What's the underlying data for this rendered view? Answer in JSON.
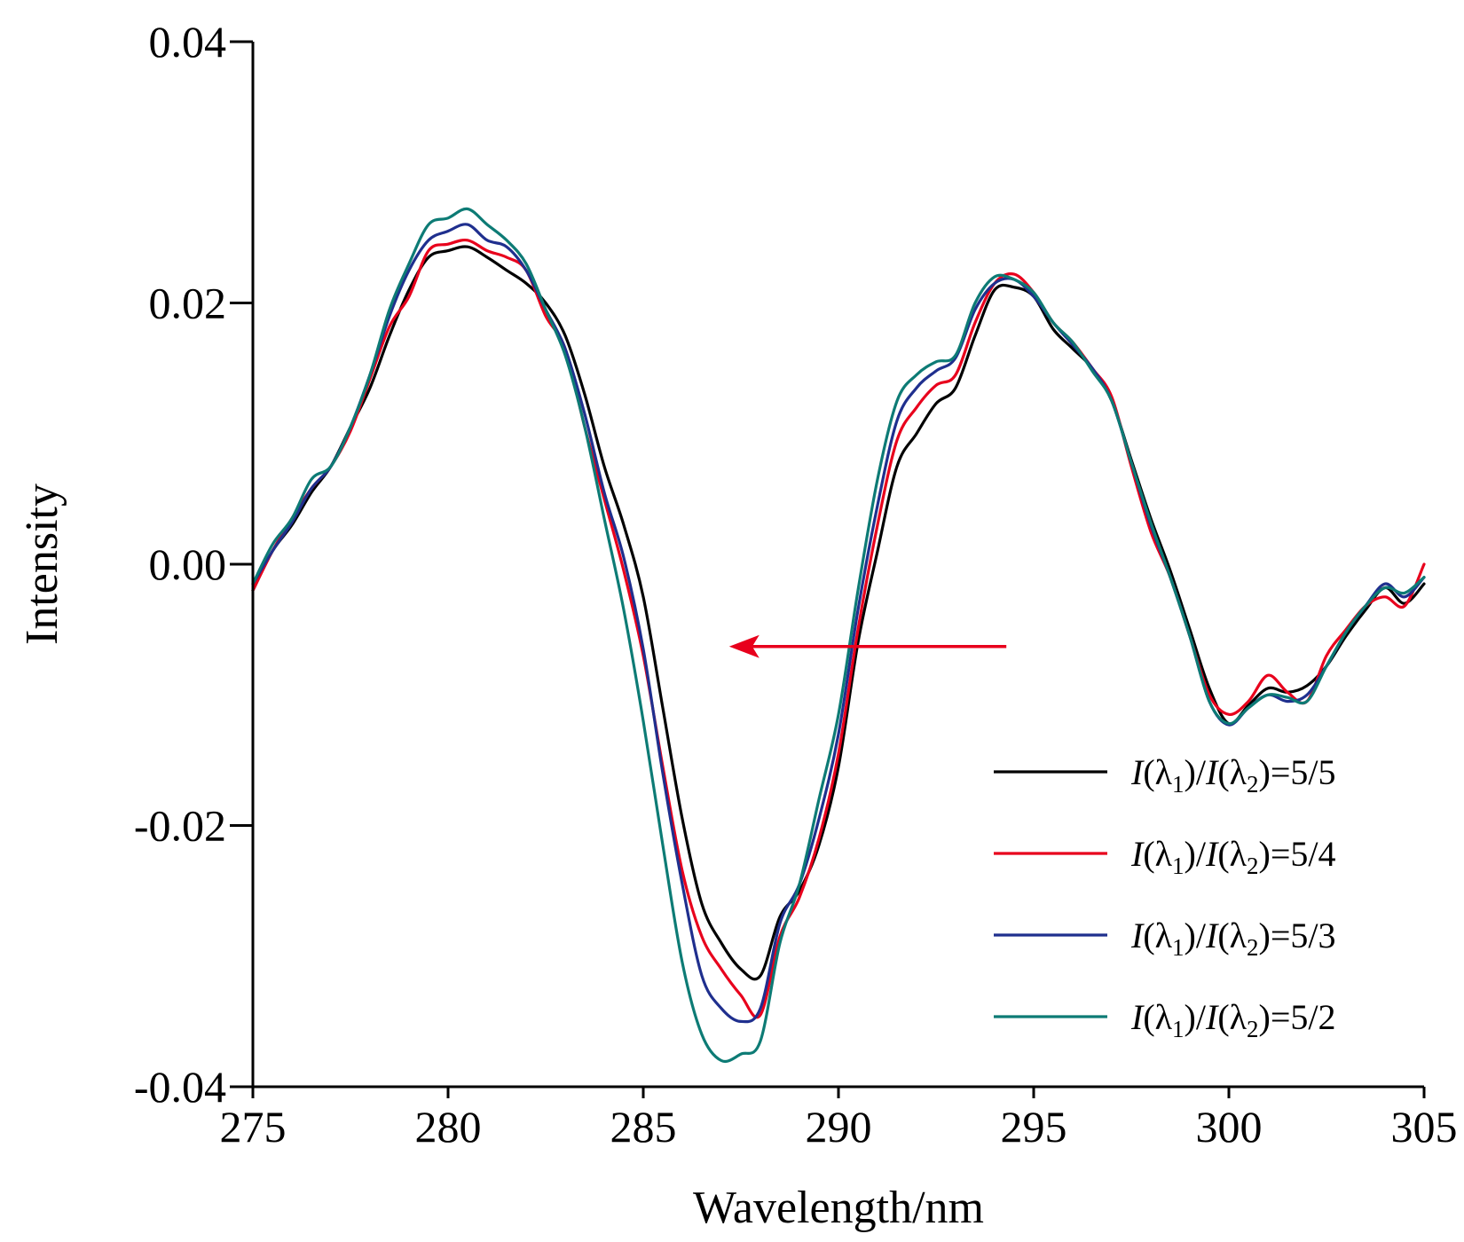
{
  "chart_data": {
    "type": "line",
    "xlabel": "Wavelength/nm",
    "ylabel": "Intensity",
    "xlim": [
      275,
      305
    ],
    "ylim": [
      -0.04,
      0.04
    ],
    "x_ticks": [
      275,
      280,
      285,
      290,
      295,
      300,
      305
    ],
    "x_tick_labels": [
      "275",
      "280",
      "285",
      "290",
      "295",
      "300",
      "305"
    ],
    "y_ticks": [
      0.04,
      0.02,
      0.0,
      -0.02,
      -0.04
    ],
    "y_tick_labels": [
      "0.04",
      "0.02",
      "0.00",
      "-0.02",
      "-0.04"
    ],
    "grid": false,
    "legend_position": "bottom-right",
    "annotation": {
      "type": "arrow",
      "direction": "left",
      "color": "#e8001c",
      "x_from": 294.3,
      "x_to": 287.2,
      "y": -0.0063
    },
    "series": [
      {
        "name": "I(λ1)/I(λ2)=5/5",
        "name_parts": {
          "num": "5",
          "den": "5"
        },
        "color": "#000000",
        "points": [
          [
            275,
            -0.002
          ],
          [
            275.5,
            0.001
          ],
          [
            276,
            0.003
          ],
          [
            276.5,
            0.0055
          ],
          [
            277,
            0.0075
          ],
          [
            277.5,
            0.0105
          ],
          [
            278,
            0.0135
          ],
          [
            278.5,
            0.0175
          ],
          [
            279,
            0.021
          ],
          [
            279.5,
            0.0235
          ],
          [
            280,
            0.024
          ],
          [
            280.5,
            0.0243
          ],
          [
            281,
            0.0235
          ],
          [
            281.5,
            0.0225
          ],
          [
            282,
            0.0215
          ],
          [
            282.5,
            0.02
          ],
          [
            283,
            0.0175
          ],
          [
            283.5,
            0.013
          ],
          [
            284,
            0.0075
          ],
          [
            284.5,
            0.003
          ],
          [
            285,
            -0.0025
          ],
          [
            285.5,
            -0.011
          ],
          [
            286,
            -0.0195
          ],
          [
            286.5,
            -0.026
          ],
          [
            287,
            -0.029
          ],
          [
            287.5,
            -0.031
          ],
          [
            288,
            -0.0315
          ],
          [
            288.5,
            -0.027
          ],
          [
            289,
            -0.025
          ],
          [
            289.5,
            -0.0215
          ],
          [
            290,
            -0.0155
          ],
          [
            290.5,
            -0.006
          ],
          [
            291,
            0.001
          ],
          [
            291.5,
            0.0075
          ],
          [
            292,
            0.01
          ],
          [
            292.5,
            0.0123
          ],
          [
            293,
            0.0135
          ],
          [
            293.5,
            0.0175
          ],
          [
            294,
            0.021
          ],
          [
            294.5,
            0.0212
          ],
          [
            295,
            0.0205
          ],
          [
            295.5,
            0.018
          ],
          [
            296,
            0.0165
          ],
          [
            296.5,
            0.015
          ],
          [
            297,
            0.0125
          ],
          [
            297.5,
            0.008
          ],
          [
            298,
            0.0035
          ],
          [
            298.5,
            -0.0005
          ],
          [
            299,
            -0.005
          ],
          [
            299.5,
            -0.0095
          ],
          [
            300,
            -0.0122
          ],
          [
            300.5,
            -0.0108
          ],
          [
            301,
            -0.0095
          ],
          [
            301.5,
            -0.0098
          ],
          [
            302,
            -0.0093
          ],
          [
            302.5,
            -0.0078
          ],
          [
            303,
            -0.0055
          ],
          [
            303.5,
            -0.0035
          ],
          [
            304,
            -0.0018
          ],
          [
            304.5,
            -0.003
          ],
          [
            305,
            -0.0015
          ]
        ]
      },
      {
        "name": "I(λ1)/I(λ2)=5/4",
        "name_parts": {
          "num": "5",
          "den": "4"
        },
        "color": "#e8001c",
        "points": [
          [
            275,
            -0.002
          ],
          [
            275.5,
            0.001
          ],
          [
            276,
            0.0035
          ],
          [
            276.5,
            0.0058
          ],
          [
            277,
            0.0075
          ],
          [
            277.5,
            0.0102
          ],
          [
            278,
            0.0142
          ],
          [
            278.5,
            0.0182
          ],
          [
            279,
            0.0205
          ],
          [
            279.5,
            0.024
          ],
          [
            280,
            0.0245
          ],
          [
            280.5,
            0.0248
          ],
          [
            281,
            0.024
          ],
          [
            281.5,
            0.0235
          ],
          [
            282,
            0.0225
          ],
          [
            282.5,
            0.019
          ],
          [
            283,
            0.0165
          ],
          [
            283.5,
            0.0105
          ],
          [
            284,
            0.005
          ],
          [
            284.5,
            -0.0005
          ],
          [
            285,
            -0.007
          ],
          [
            285.5,
            -0.0155
          ],
          [
            286,
            -0.0235
          ],
          [
            286.5,
            -0.0285
          ],
          [
            287,
            -0.031
          ],
          [
            287.5,
            -0.033
          ],
          [
            288,
            -0.0345
          ],
          [
            288.5,
            -0.0285
          ],
          [
            289,
            -0.0255
          ],
          [
            289.5,
            -0.021
          ],
          [
            290,
            -0.0145
          ],
          [
            290.5,
            -0.005
          ],
          [
            291,
            0.003
          ],
          [
            291.5,
            0.0095
          ],
          [
            292,
            0.012
          ],
          [
            292.5,
            0.0137
          ],
          [
            293,
            0.0145
          ],
          [
            293.5,
            0.0185
          ],
          [
            294,
            0.0215
          ],
          [
            294.5,
            0.0222
          ],
          [
            295,
            0.0208
          ],
          [
            295.5,
            0.0185
          ],
          [
            296,
            0.017
          ],
          [
            296.5,
            0.015
          ],
          [
            297,
            0.0128
          ],
          [
            297.5,
            0.0075
          ],
          [
            298,
            0.0025
          ],
          [
            298.5,
            -0.001
          ],
          [
            299,
            -0.0055
          ],
          [
            299.5,
            -0.01
          ],
          [
            300,
            -0.0115
          ],
          [
            300.5,
            -0.0105
          ],
          [
            301,
            -0.0085
          ],
          [
            301.5,
            -0.0098
          ],
          [
            302,
            -0.0105
          ],
          [
            302.5,
            -0.007
          ],
          [
            303,
            -0.005
          ],
          [
            303.5,
            -0.0032
          ],
          [
            304,
            -0.0025
          ],
          [
            304.5,
            -0.0032
          ],
          [
            305,
            0.0
          ]
        ]
      },
      {
        "name": "I(λ1)/I(λ2)=5/3",
        "name_parts": {
          "num": "5",
          "den": "3"
        },
        "color": "#1f2f8e",
        "points": [
          [
            275,
            -0.0015
          ],
          [
            275.5,
            0.001
          ],
          [
            276,
            0.0032
          ],
          [
            276.5,
            0.0058
          ],
          [
            277,
            0.0075
          ],
          [
            277.5,
            0.0105
          ],
          [
            278,
            0.0145
          ],
          [
            278.5,
            0.019
          ],
          [
            279,
            0.0225
          ],
          [
            279.5,
            0.0248
          ],
          [
            280,
            0.0255
          ],
          [
            280.5,
            0.026
          ],
          [
            281,
            0.0248
          ],
          [
            281.5,
            0.0243
          ],
          [
            282,
            0.0225
          ],
          [
            282.5,
            0.0195
          ],
          [
            283,
            0.0165
          ],
          [
            283.5,
            0.0115
          ],
          [
            284,
            0.0055
          ],
          [
            284.5,
            0.0005
          ],
          [
            285,
            -0.0065
          ],
          [
            285.5,
            -0.016
          ],
          [
            286,
            -0.0245
          ],
          [
            286.5,
            -0.0315
          ],
          [
            287,
            -0.034
          ],
          [
            287.5,
            -0.035
          ],
          [
            288,
            -0.034
          ],
          [
            288.5,
            -0.0275
          ],
          [
            289,
            -0.0245
          ],
          [
            289.5,
            -0.0195
          ],
          [
            290,
            -0.013
          ],
          [
            290.5,
            -0.0035
          ],
          [
            291,
            0.0045
          ],
          [
            291.5,
            0.011
          ],
          [
            292,
            0.0135
          ],
          [
            292.5,
            0.0148
          ],
          [
            293,
            0.0158
          ],
          [
            293.5,
            0.0195
          ],
          [
            294,
            0.0215
          ],
          [
            294.5,
            0.0218
          ],
          [
            295,
            0.0205
          ],
          [
            295.5,
            0.0185
          ],
          [
            296,
            0.0168
          ],
          [
            296.5,
            0.015
          ],
          [
            297,
            0.0125
          ],
          [
            297.5,
            0.0078
          ],
          [
            298,
            0.003
          ],
          [
            298.5,
            -0.001
          ],
          [
            299,
            -0.0055
          ],
          [
            299.5,
            -0.0105
          ],
          [
            300,
            -0.0123
          ],
          [
            300.5,
            -0.011
          ],
          [
            301,
            -0.01
          ],
          [
            301.5,
            -0.0105
          ],
          [
            302,
            -0.01
          ],
          [
            302.5,
            -0.0078
          ],
          [
            303,
            -0.0052
          ],
          [
            303.5,
            -0.0032
          ],
          [
            304,
            -0.0015
          ],
          [
            304.5,
            -0.0025
          ],
          [
            305,
            -0.001
          ]
        ]
      },
      {
        "name": "I(λ1)/I(λ2)=5/2",
        "name_parts": {
          "num": "5",
          "den": "2"
        },
        "color": "#0d7b75",
        "points": [
          [
            275,
            -0.0015
          ],
          [
            275.5,
            0.0015
          ],
          [
            276,
            0.0035
          ],
          [
            276.5,
            0.0065
          ],
          [
            277,
            0.0075
          ],
          [
            277.5,
            0.0105
          ],
          [
            278,
            0.0145
          ],
          [
            278.5,
            0.0195
          ],
          [
            279,
            0.023
          ],
          [
            279.5,
            0.026
          ],
          [
            280,
            0.0265
          ],
          [
            280.5,
            0.0272
          ],
          [
            281,
            0.026
          ],
          [
            281.5,
            0.0248
          ],
          [
            282,
            0.023
          ],
          [
            282.5,
            0.0195
          ],
          [
            283,
            0.016
          ],
          [
            283.5,
            0.0105
          ],
          [
            284,
            0.0035
          ],
          [
            284.5,
            -0.0035
          ],
          [
            285,
            -0.012
          ],
          [
            285.5,
            -0.0215
          ],
          [
            286,
            -0.0305
          ],
          [
            286.5,
            -0.036
          ],
          [
            287,
            -0.038
          ],
          [
            287.5,
            -0.0375
          ],
          [
            288,
            -0.0365
          ],
          [
            288.5,
            -0.029
          ],
          [
            289,
            -0.0245
          ],
          [
            289.5,
            -0.018
          ],
          [
            290,
            -0.0115
          ],
          [
            290.5,
            -0.002
          ],
          [
            291,
            0.0065
          ],
          [
            291.5,
            0.0125
          ],
          [
            292,
            0.0145
          ],
          [
            292.5,
            0.0155
          ],
          [
            293,
            0.016
          ],
          [
            293.5,
            0.02
          ],
          [
            294,
            0.022
          ],
          [
            294.5,
            0.0218
          ],
          [
            295,
            0.0208
          ],
          [
            295.5,
            0.0185
          ],
          [
            296,
            0.017
          ],
          [
            296.5,
            0.0148
          ],
          [
            297,
            0.0125
          ],
          [
            297.5,
            0.0078
          ],
          [
            298,
            0.0032
          ],
          [
            298.5,
            -0.001
          ],
          [
            299,
            -0.0055
          ],
          [
            299.5,
            -0.0105
          ],
          [
            300,
            -0.0122
          ],
          [
            300.5,
            -0.011
          ],
          [
            301,
            -0.01
          ],
          [
            301.5,
            -0.0102
          ],
          [
            302,
            -0.0105
          ],
          [
            302.5,
            -0.0078
          ],
          [
            303,
            -0.0052
          ],
          [
            303.5,
            -0.0032
          ],
          [
            304,
            -0.0018
          ],
          [
            304.5,
            -0.0022
          ],
          [
            305,
            -0.001
          ]
        ]
      }
    ]
  }
}
